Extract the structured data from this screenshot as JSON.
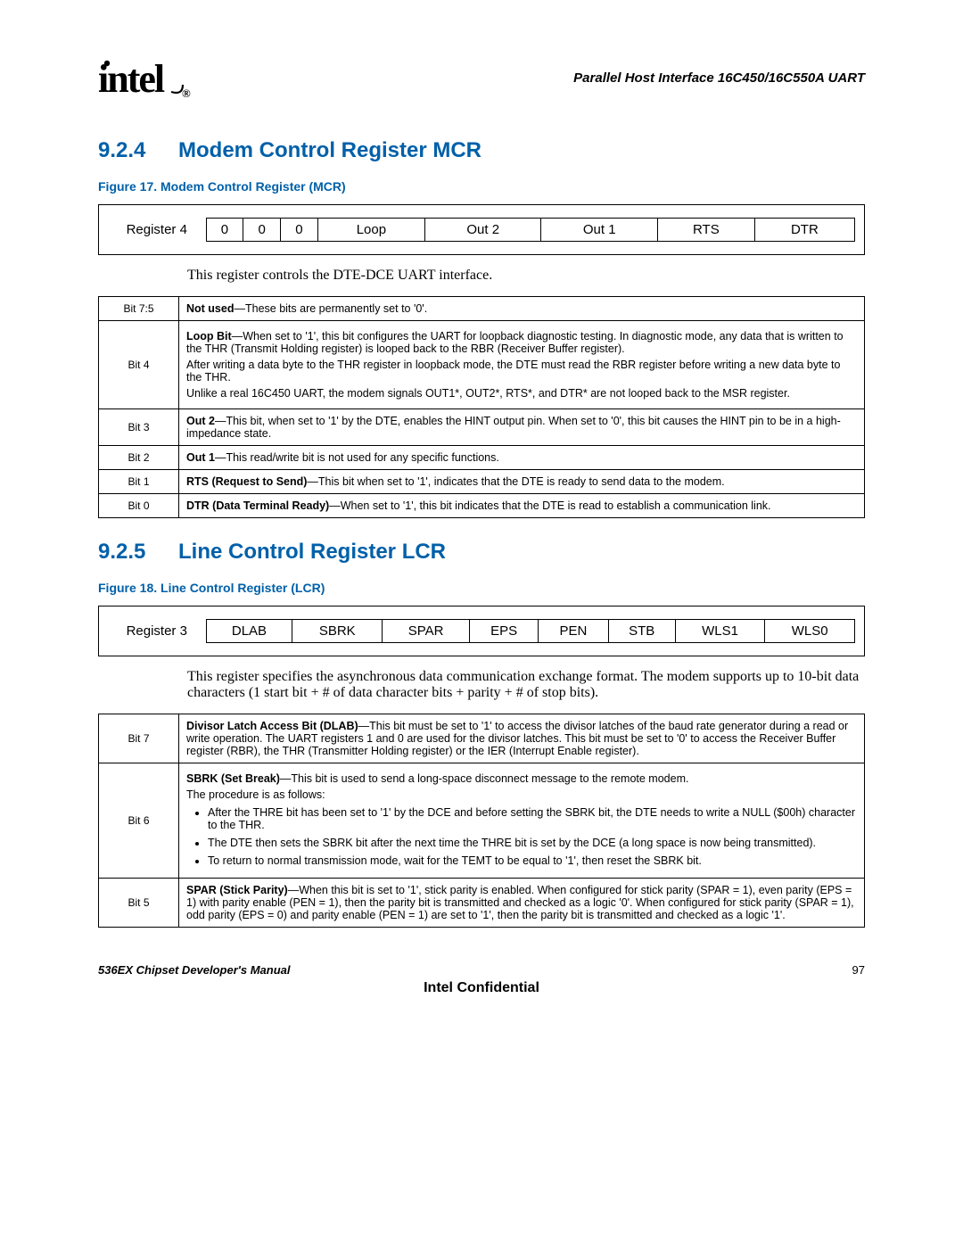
{
  "header": {
    "logo_text": "intel",
    "logo_reg": "®",
    "doc_title": "Parallel Host Interface 16C450/16C550A UART"
  },
  "section1": {
    "num": "9.2.4",
    "title": "Modem Control Register MCR",
    "fig_caption": "Figure 17. Modem Control Register (MCR)",
    "reg_label": "Register 4",
    "bits": [
      "0",
      "0",
      "0",
      "Loop",
      "Out 2",
      "Out 1",
      "RTS",
      "DTR"
    ],
    "body": "This register controls the DTE-DCE UART interface.",
    "rows": [
      {
        "label": "Bit 7:5",
        "html": "<b>Not used</b>—These bits are permanently set to '0'."
      },
      {
        "label": "Bit 4",
        "html": "<p><b>Loop Bit</b>—When set to '1', this bit configures the UART for loopback diagnostic testing. In diagnostic mode, any data that is written to the THR (Transmit Holding register) is looped back to the RBR (Receiver Buffer register).</p><p>After writing a data byte to the THR register in loopback mode, the DTE must read the RBR register before writing a new data byte to the THR.</p><p>Unlike a real 16C450 UART, the modem signals OUT1*, OUT2*, RTS*, and DTR* are not looped back to the MSR register.</p>"
      },
      {
        "label": "Bit 3",
        "html": "<b>Out 2</b>—This bit, when set to '1' by the DTE, enables the HINT output pin. When set to '0', this bit causes the HINT pin to be in a high-impedance state."
      },
      {
        "label": "Bit 2",
        "html": "<b>Out 1</b>—This read/write bit is not used for any specific functions."
      },
      {
        "label": "Bit 1",
        "html": "<b>RTS (Request to Send)</b>—This bit when set to '1', indicates that the DTE is ready to send data to the modem."
      },
      {
        "label": "Bit 0",
        "html": "<b>DTR (Data Terminal Ready)</b>—When set to '1', this bit indicates that the DTE is read to establish a communication link."
      }
    ]
  },
  "section2": {
    "num": "9.2.5",
    "title": "Line Control Register LCR",
    "fig_caption": "Figure 18. Line Control Register (LCR)",
    "reg_label": "Register 3",
    "bits": [
      "DLAB",
      "SBRK",
      "SPAR",
      "EPS",
      "PEN",
      "STB",
      "WLS1",
      "WLS0"
    ],
    "body": "This register specifies the asynchronous data communication exchange format. The modem supports up to 10-bit data characters (1 start bit + # of data character bits + parity + # of stop bits).",
    "rows": [
      {
        "label": "Bit 7",
        "html": "<b>Divisor Latch Access Bit (DLAB)</b>—This bit must be set to '1' to access the divisor latches of the baud rate generator during a read or write operation. The UART registers 1 and 0 are used for the divisor latches. This bit must be set to '0' to access the Receiver Buffer register (RBR), the THR (Transmitter Holding register) or the IER (Interrupt Enable register)."
      },
      {
        "label": "Bit 6",
        "html": "<p><b>SBRK (Set Break)</b>—This bit is used to send a long-space disconnect message to the remote modem.</p><p>The procedure is as follows:</p><ul><li>After the THRE bit has been set to '1' by the DCE and before setting the SBRK bit, the DTE needs to write a NULL ($00h) character to the THR.</li><li>The DTE then sets the SBRK bit after the next time the THRE bit is set by the DCE (a long space is now being transmitted).</li><li>To return to normal transmission mode, wait for the TEMT to be equal to '1', then reset the SBRK bit.</li></ul>"
      },
      {
        "label": "Bit 5",
        "html": "<b>SPAR (Stick Parity)</b>—When this bit is set to '1', stick parity is enabled. When configured for stick parity (SPAR = 1), even parity (EPS = 1) with parity enable (PEN = 1), then the parity bit is transmitted and checked as a logic '0'. When configured for stick parity (SPAR = 1), odd parity (EPS = 0) and parity enable (PEN = 1) are set to '1', then the parity bit is transmitted and checked as a logic '1'."
      }
    ]
  },
  "footer": {
    "manual": "536EX Chipset Developer's Manual",
    "page": "97",
    "conf": "Intel Confidential"
  },
  "colors": {
    "heading": "#0060a9",
    "text": "#000000",
    "border": "#000000",
    "bg": "#ffffff"
  }
}
